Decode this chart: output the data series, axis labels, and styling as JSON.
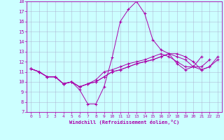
{
  "background_color": "#ccffff",
  "grid_color": "#aaaacc",
  "line_color": "#aa00aa",
  "xlim": [
    -0.5,
    23.5
  ],
  "ylim": [
    7,
    18
  ],
  "xticks": [
    0,
    1,
    2,
    3,
    4,
    5,
    6,
    7,
    8,
    9,
    10,
    11,
    12,
    13,
    14,
    15,
    16,
    17,
    18,
    19,
    20,
    21,
    22,
    23
  ],
  "yticks": [
    7,
    8,
    9,
    10,
    11,
    12,
    13,
    14,
    15,
    16,
    17,
    18
  ],
  "xlabel": "Windchill (Refroidissement éolien,°C)",
  "lines": [
    {
      "y": [
        11.3,
        11.0,
        10.5,
        10.5,
        9.8,
        10.0,
        9.2,
        7.8,
        7.8,
        9.5,
        12.4,
        16.0,
        17.2,
        18.0,
        16.8,
        14.2,
        13.2,
        12.8,
        11.8,
        11.2,
        11.5,
        12.5,
        null,
        null
      ],
      "x": [
        0,
        1,
        2,
        3,
        4,
        5,
        6,
        7,
        8,
        9,
        10,
        11,
        12,
        13,
        14,
        15,
        16,
        17,
        18,
        19,
        20,
        21,
        22,
        23
      ]
    },
    {
      "y": [
        11.3,
        11.0,
        10.5,
        10.5,
        9.8,
        10.0,
        9.5,
        9.8,
        10.0,
        10.5,
        11.0,
        11.2,
        11.5,
        11.8,
        12.0,
        12.2,
        12.5,
        12.8,
        12.5,
        12.2,
        11.5,
        11.2,
        11.5,
        12.5
      ],
      "x": [
        0,
        1,
        2,
        3,
        4,
        5,
        6,
        7,
        8,
        9,
        10,
        11,
        12,
        13,
        14,
        15,
        16,
        17,
        18,
        19,
        20,
        21,
        22,
        23
      ]
    },
    {
      "y": [
        11.3,
        11.0,
        10.5,
        10.5,
        9.8,
        10.0,
        9.5,
        9.8,
        10.0,
        10.5,
        11.0,
        11.2,
        11.5,
        11.8,
        12.0,
        12.2,
        12.5,
        12.8,
        12.8,
        12.5,
        12.0,
        11.2,
        11.5,
        12.2
      ],
      "x": [
        0,
        1,
        2,
        3,
        4,
        5,
        6,
        7,
        8,
        9,
        10,
        11,
        12,
        13,
        14,
        15,
        16,
        17,
        18,
        19,
        20,
        21,
        22,
        23
      ]
    },
    {
      "y": [
        11.3,
        11.0,
        10.5,
        10.5,
        9.8,
        10.0,
        9.5,
        9.8,
        10.2,
        11.0,
        11.2,
        11.5,
        11.8,
        12.0,
        12.2,
        12.5,
        12.8,
        12.5,
        12.0,
        11.5,
        11.5,
        11.5,
        12.2,
        null
      ],
      "x": [
        0,
        1,
        2,
        3,
        4,
        5,
        6,
        7,
        8,
        9,
        10,
        11,
        12,
        13,
        14,
        15,
        16,
        17,
        18,
        19,
        20,
        21,
        22,
        23
      ]
    }
  ]
}
